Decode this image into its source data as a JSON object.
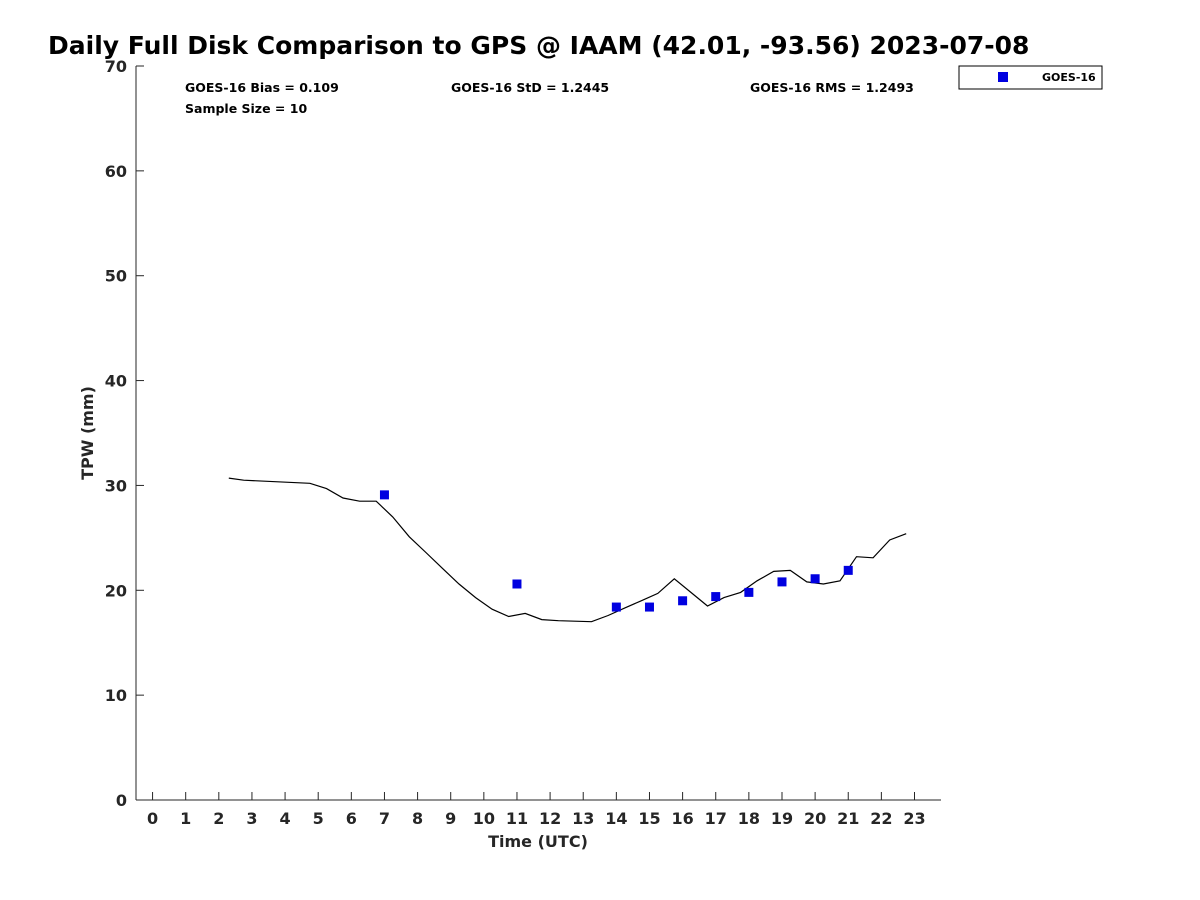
{
  "chart_data": {
    "type": "scatter",
    "title": "Daily Full Disk Comparison to GPS @ IAAM (42.01, -93.56) 2023-07-08",
    "xlabel": "Time (UTC)",
    "ylabel": "TPW (mm)",
    "xlim": [
      -0.5,
      23.8
    ],
    "ylim": [
      0,
      70
    ],
    "xticks": [
      0,
      1,
      2,
      3,
      4,
      5,
      6,
      7,
      8,
      9,
      10,
      11,
      12,
      13,
      14,
      15,
      16,
      17,
      18,
      19,
      20,
      21,
      22,
      23
    ],
    "xtick_labels": [
      "0",
      "1",
      "2",
      "3",
      "4",
      "5",
      "6",
      "7",
      "8",
      "9",
      "10",
      "11",
      "12",
      "13",
      "14",
      "15",
      "16",
      "17",
      "18",
      "19",
      "20",
      "21",
      "22",
      "23"
    ],
    "yticks": [
      0,
      10,
      20,
      30,
      40,
      50,
      60,
      70
    ],
    "ytick_labels": [
      "0",
      "10",
      "20",
      "30",
      "40",
      "50",
      "60",
      "70"
    ],
    "grid": false,
    "legend": {
      "position": "top-right",
      "entries": [
        "GOES-16"
      ]
    },
    "stats": {
      "bias": "GOES-16 Bias = 0.109",
      "std": "GOES-16 StD = 1.2445",
      "rms": "GOES-16 RMS = 1.2493",
      "sample": "Sample Size = 10"
    },
    "series": [
      {
        "name": "GPS",
        "style": "line",
        "color": "#000000",
        "x": [
          2.3,
          2.75,
          4.75,
          5.25,
          5.75,
          6.25,
          6.75,
          7.25,
          7.75,
          8.25,
          8.75,
          9.25,
          9.75,
          10.25,
          10.75,
          11.25,
          11.75,
          12.25,
          12.75,
          13.25,
          13.75,
          14.25,
          14.75,
          15.25,
          15.75,
          16.25,
          16.75,
          17.25,
          17.75,
          18.25,
          18.75,
          19.25,
          19.75,
          20.25,
          20.75,
          21.25,
          21.75,
          22.25,
          22.75
        ],
        "y": [
          30.7,
          30.5,
          30.2,
          29.7,
          28.8,
          28.5,
          28.5,
          27.0,
          25.1,
          23.6,
          22.1,
          20.6,
          19.3,
          18.2,
          17.5,
          17.8,
          17.2,
          17.1,
          17.05,
          17.0,
          17.6,
          18.3,
          19.0,
          19.7,
          21.1,
          19.8,
          18.5,
          19.3,
          19.8,
          20.9,
          21.8,
          21.9,
          20.8,
          20.6,
          20.9,
          23.2,
          23.1,
          24.8,
          25.4
        ]
      },
      {
        "name": "GOES-16",
        "style": "markers",
        "color": "#0000e0",
        "x": [
          7,
          11,
          14,
          15,
          16,
          17,
          18,
          19,
          20,
          21
        ],
        "y": [
          29.1,
          20.6,
          18.4,
          18.4,
          19.0,
          19.4,
          19.8,
          20.8,
          21.1,
          21.9
        ]
      }
    ]
  }
}
